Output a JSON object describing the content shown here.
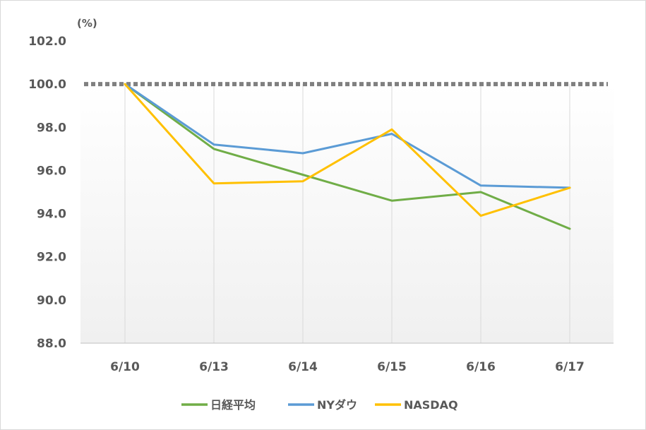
{
  "chart_data": {
    "type": "line",
    "unit_label": "(%)",
    "categories": [
      "6/10",
      "6/13",
      "6/14",
      "6/15",
      "6/16",
      "6/17"
    ],
    "ylim": [
      88.0,
      102.0
    ],
    "yticks": [
      "88.0",
      "90.0",
      "92.0",
      "94.0",
      "96.0",
      "98.0",
      "100.0",
      "102.0"
    ],
    "reference_line": {
      "value": 100.0,
      "style": "dotted",
      "color": "#808080"
    },
    "series": [
      {
        "name": "日経平均",
        "color": "#70ad47",
        "values": [
          100.0,
          97.0,
          95.8,
          94.6,
          95.0,
          93.3
        ]
      },
      {
        "name": "NYダウ",
        "color": "#5b9bd5",
        "values": [
          100.0,
          97.2,
          96.8,
          97.7,
          95.3,
          95.2
        ]
      },
      {
        "name": "NASDAQ",
        "color": "#ffc000",
        "values": [
          100.0,
          95.4,
          95.5,
          97.9,
          93.9,
          95.2
        ]
      }
    ],
    "grid": {
      "vertical": true,
      "horizontal": false
    },
    "legend_position": "bottom"
  }
}
